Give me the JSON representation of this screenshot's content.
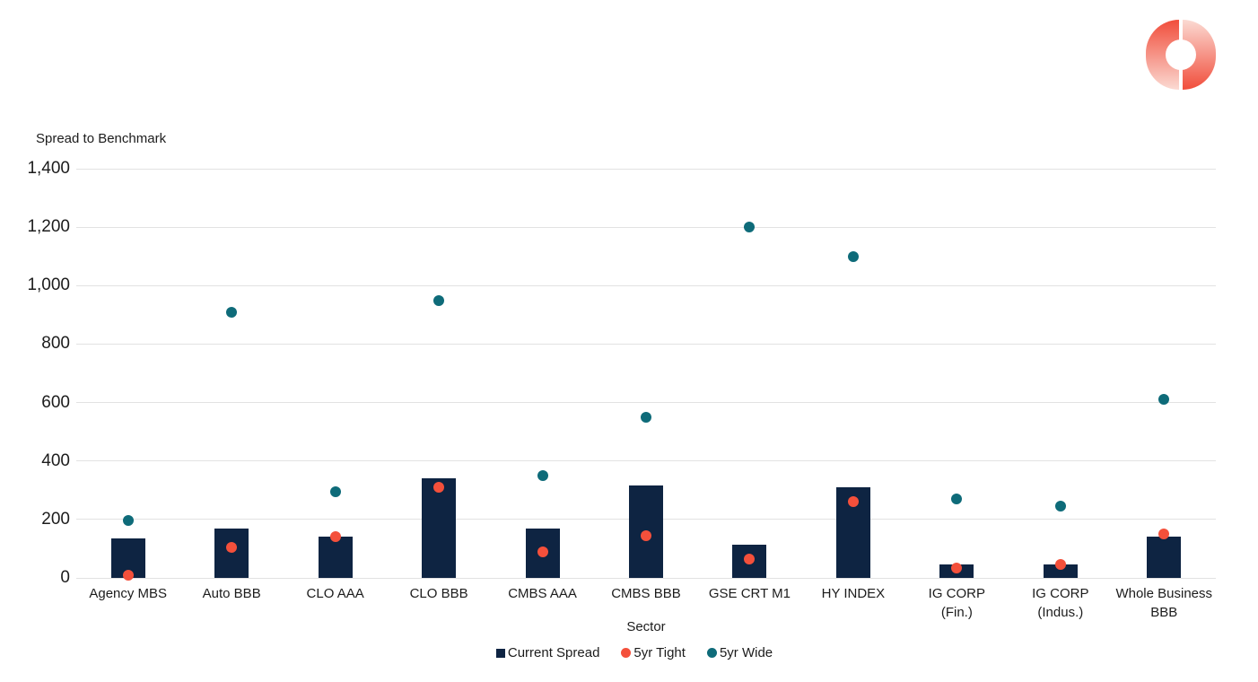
{
  "logo": {
    "name": "donut-ring-logo",
    "color_strong": "#F1503E",
    "color_light": "#FBDAD3"
  },
  "chart_data": {
    "type": "bar",
    "title": "Spread to Benchmark",
    "xlabel": "Sector",
    "ylabel": "Spread to Benchmark",
    "ylim": [
      0,
      1400
    ],
    "ytick_step": 200,
    "yticks": [
      "0",
      "200",
      "400",
      "600",
      "800",
      "1,000",
      "1,200",
      "1,400"
    ],
    "grid": "horizontal",
    "legend_position": "bottom",
    "categories": [
      "Agency MBS",
      "Auto BBB",
      "CLO AAA",
      "CLO BBB",
      "CMBS AAA",
      "CMBS BBB",
      "GSE CRT M1",
      "HY INDEX",
      "IG CORP\n(Fin.)",
      "IG CORP\n(Indus.)",
      "Whole Business\nBBB"
    ],
    "series": [
      {
        "name": "Current Spread",
        "render": "bar",
        "marker": "square",
        "color": "#0E2442",
        "values": [
          135,
          170,
          140,
          340,
          170,
          315,
          115,
          310,
          45,
          45,
          140
        ]
      },
      {
        "name": "5yr Tight",
        "render": "point",
        "marker": "circle",
        "color": "#F4503B",
        "values": [
          10,
          105,
          140,
          310,
          90,
          145,
          65,
          260,
          35,
          45,
          150
        ]
      },
      {
        "name": "5yr Wide",
        "render": "point",
        "marker": "circle",
        "color": "#0E6B79",
        "values": [
          195,
          910,
          295,
          950,
          350,
          550,
          1200,
          1100,
          270,
          245,
          610
        ]
      }
    ]
  }
}
